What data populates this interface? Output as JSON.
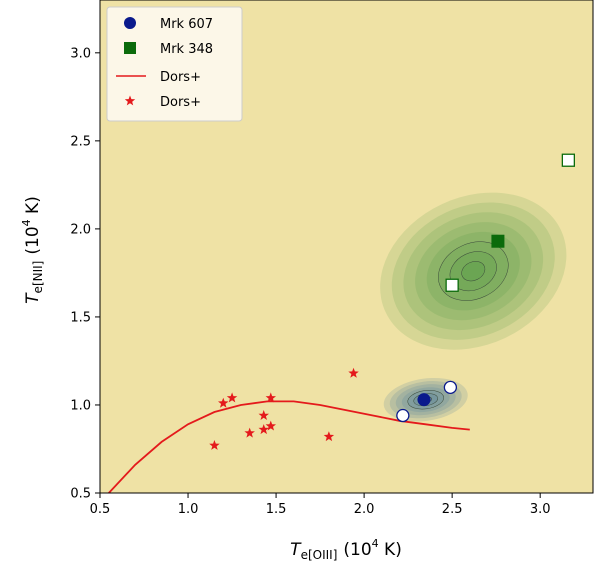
{
  "chart_data": {
    "type": "scatter",
    "title": "",
    "xlabel": {
      "main": "T",
      "sub": "e[OIII]",
      "unit": "(10",
      "exp": "4",
      "tail": " K)"
    },
    "ylabel": {
      "main": "T",
      "sub": "e[NII]",
      "unit": "(10",
      "exp": "4",
      "tail": " K)"
    },
    "xlim": [
      0.5,
      3.3
    ],
    "ylim": [
      0.5,
      3.3
    ],
    "xticks": [
      0.5,
      1.0,
      1.5,
      2.0,
      2.5,
      3.0
    ],
    "xtick_labels": [
      "0.5",
      "1.0",
      "1.5",
      "2.0",
      "2.5",
      "3.0"
    ],
    "yticks": [
      0.5,
      1.0,
      1.5,
      2.0,
      2.5,
      3.0
    ],
    "ytick_labels": [
      "0.5",
      "1.0",
      "1.5",
      "2.0",
      "2.5",
      "3.0"
    ],
    "legend_position": "top-left",
    "background_color": "#efe2a5",
    "series": [
      {
        "name": "Mrk 607",
        "marker": "circle",
        "color": "#0a1a8c",
        "points": [
          [
            2.34,
            1.03
          ]
        ]
      },
      {
        "name": "Mrk 348",
        "marker": "square",
        "color": "#0b6b0b",
        "points": [
          [
            2.76,
            1.93
          ]
        ]
      },
      {
        "name": "Dors+",
        "marker": "line",
        "color": "#e41a1c",
        "x": [
          0.55,
          0.7,
          0.85,
          1.0,
          1.15,
          1.3,
          1.45,
          1.6,
          1.75,
          1.9,
          2.05,
          2.2,
          2.35,
          2.5,
          2.6
        ],
        "y": [
          0.5,
          0.66,
          0.79,
          0.89,
          0.96,
          1.0,
          1.02,
          1.02,
          1.0,
          0.97,
          0.94,
          0.91,
          0.89,
          0.87,
          0.86
        ]
      },
      {
        "name": "Dors+",
        "marker": "star",
        "color": "#e41a1c",
        "points": [
          [
            1.15,
            0.77
          ],
          [
            1.2,
            1.01
          ],
          [
            1.25,
            1.04
          ],
          [
            1.35,
            0.84
          ],
          [
            1.43,
            0.86
          ],
          [
            1.43,
            0.94
          ],
          [
            1.47,
            1.04
          ],
          [
            1.47,
            0.88
          ],
          [
            1.8,
            0.82
          ],
          [
            1.94,
            1.18
          ]
        ]
      }
    ],
    "open_markers": {
      "blue": [
        [
          2.22,
          0.94
        ],
        [
          2.49,
          1.1
        ]
      ],
      "green": [
        [
          2.5,
          1.68
        ],
        [
          3.16,
          2.39
        ]
      ]
    },
    "contours": {
      "green": {
        "color": "#2e8b2e",
        "center": [
          2.62,
          1.76
        ],
        "spread": [
          0.55,
          0.42
        ],
        "levels": 8
      },
      "blue": {
        "color": "#3b6d9c",
        "center": [
          2.35,
          1.03
        ],
        "spread": [
          0.24,
          0.12
        ],
        "levels": 7
      }
    }
  }
}
